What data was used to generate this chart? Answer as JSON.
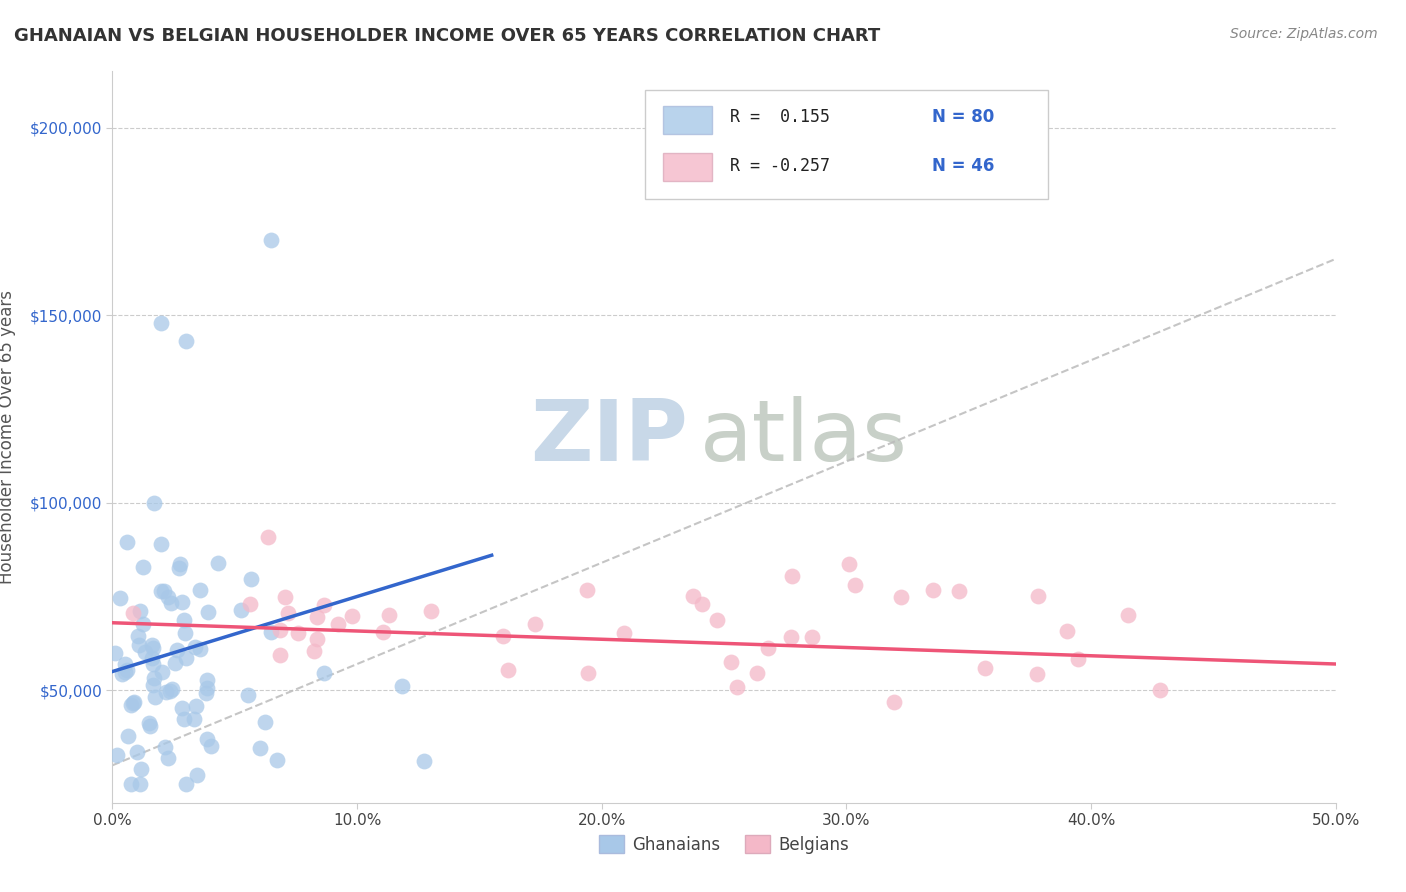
{
  "title": "GHANAIAN VS BELGIAN HOUSEHOLDER INCOME OVER 65 YEARS CORRELATION CHART",
  "source": "Source: ZipAtlas.com",
  "ylabel": "Householder Income Over 65 years",
  "xlim": [
    0.0,
    0.5
  ],
  "ylim": [
    20000,
    215000
  ],
  "xtick_labels": [
    "0.0%",
    "10.0%",
    "20.0%",
    "30.0%",
    "40.0%",
    "50.0%"
  ],
  "xtick_values": [
    0.0,
    0.1,
    0.2,
    0.3,
    0.4,
    0.5
  ],
  "ytick_values": [
    50000,
    100000,
    150000,
    200000
  ],
  "ytick_labels": [
    "$50,000",
    "$100,000",
    "$150,000",
    "$200,000"
  ],
  "legend_r1": "R =  0.155",
  "legend_n1": "N = 80",
  "legend_r2": "R = -0.257",
  "legend_n2": "N = 46",
  "ghanaian_color": "#a8c8e8",
  "belgian_color": "#f4b8c8",
  "ghanaian_line_color": "#3366cc",
  "belgian_line_color": "#ee5577",
  "trend_line_color": "#bbbbbb",
  "background_color": "#ffffff",
  "title_color": "#333333",
  "watermark_zip_color": "#c8d8e8",
  "watermark_atlas_color": "#c8d0c8",
  "watermark_text_zip": "ZIP",
  "watermark_text_atlas": "atlas",
  "ytick_color": "#3366cc",
  "xtick_color": "#444444"
}
